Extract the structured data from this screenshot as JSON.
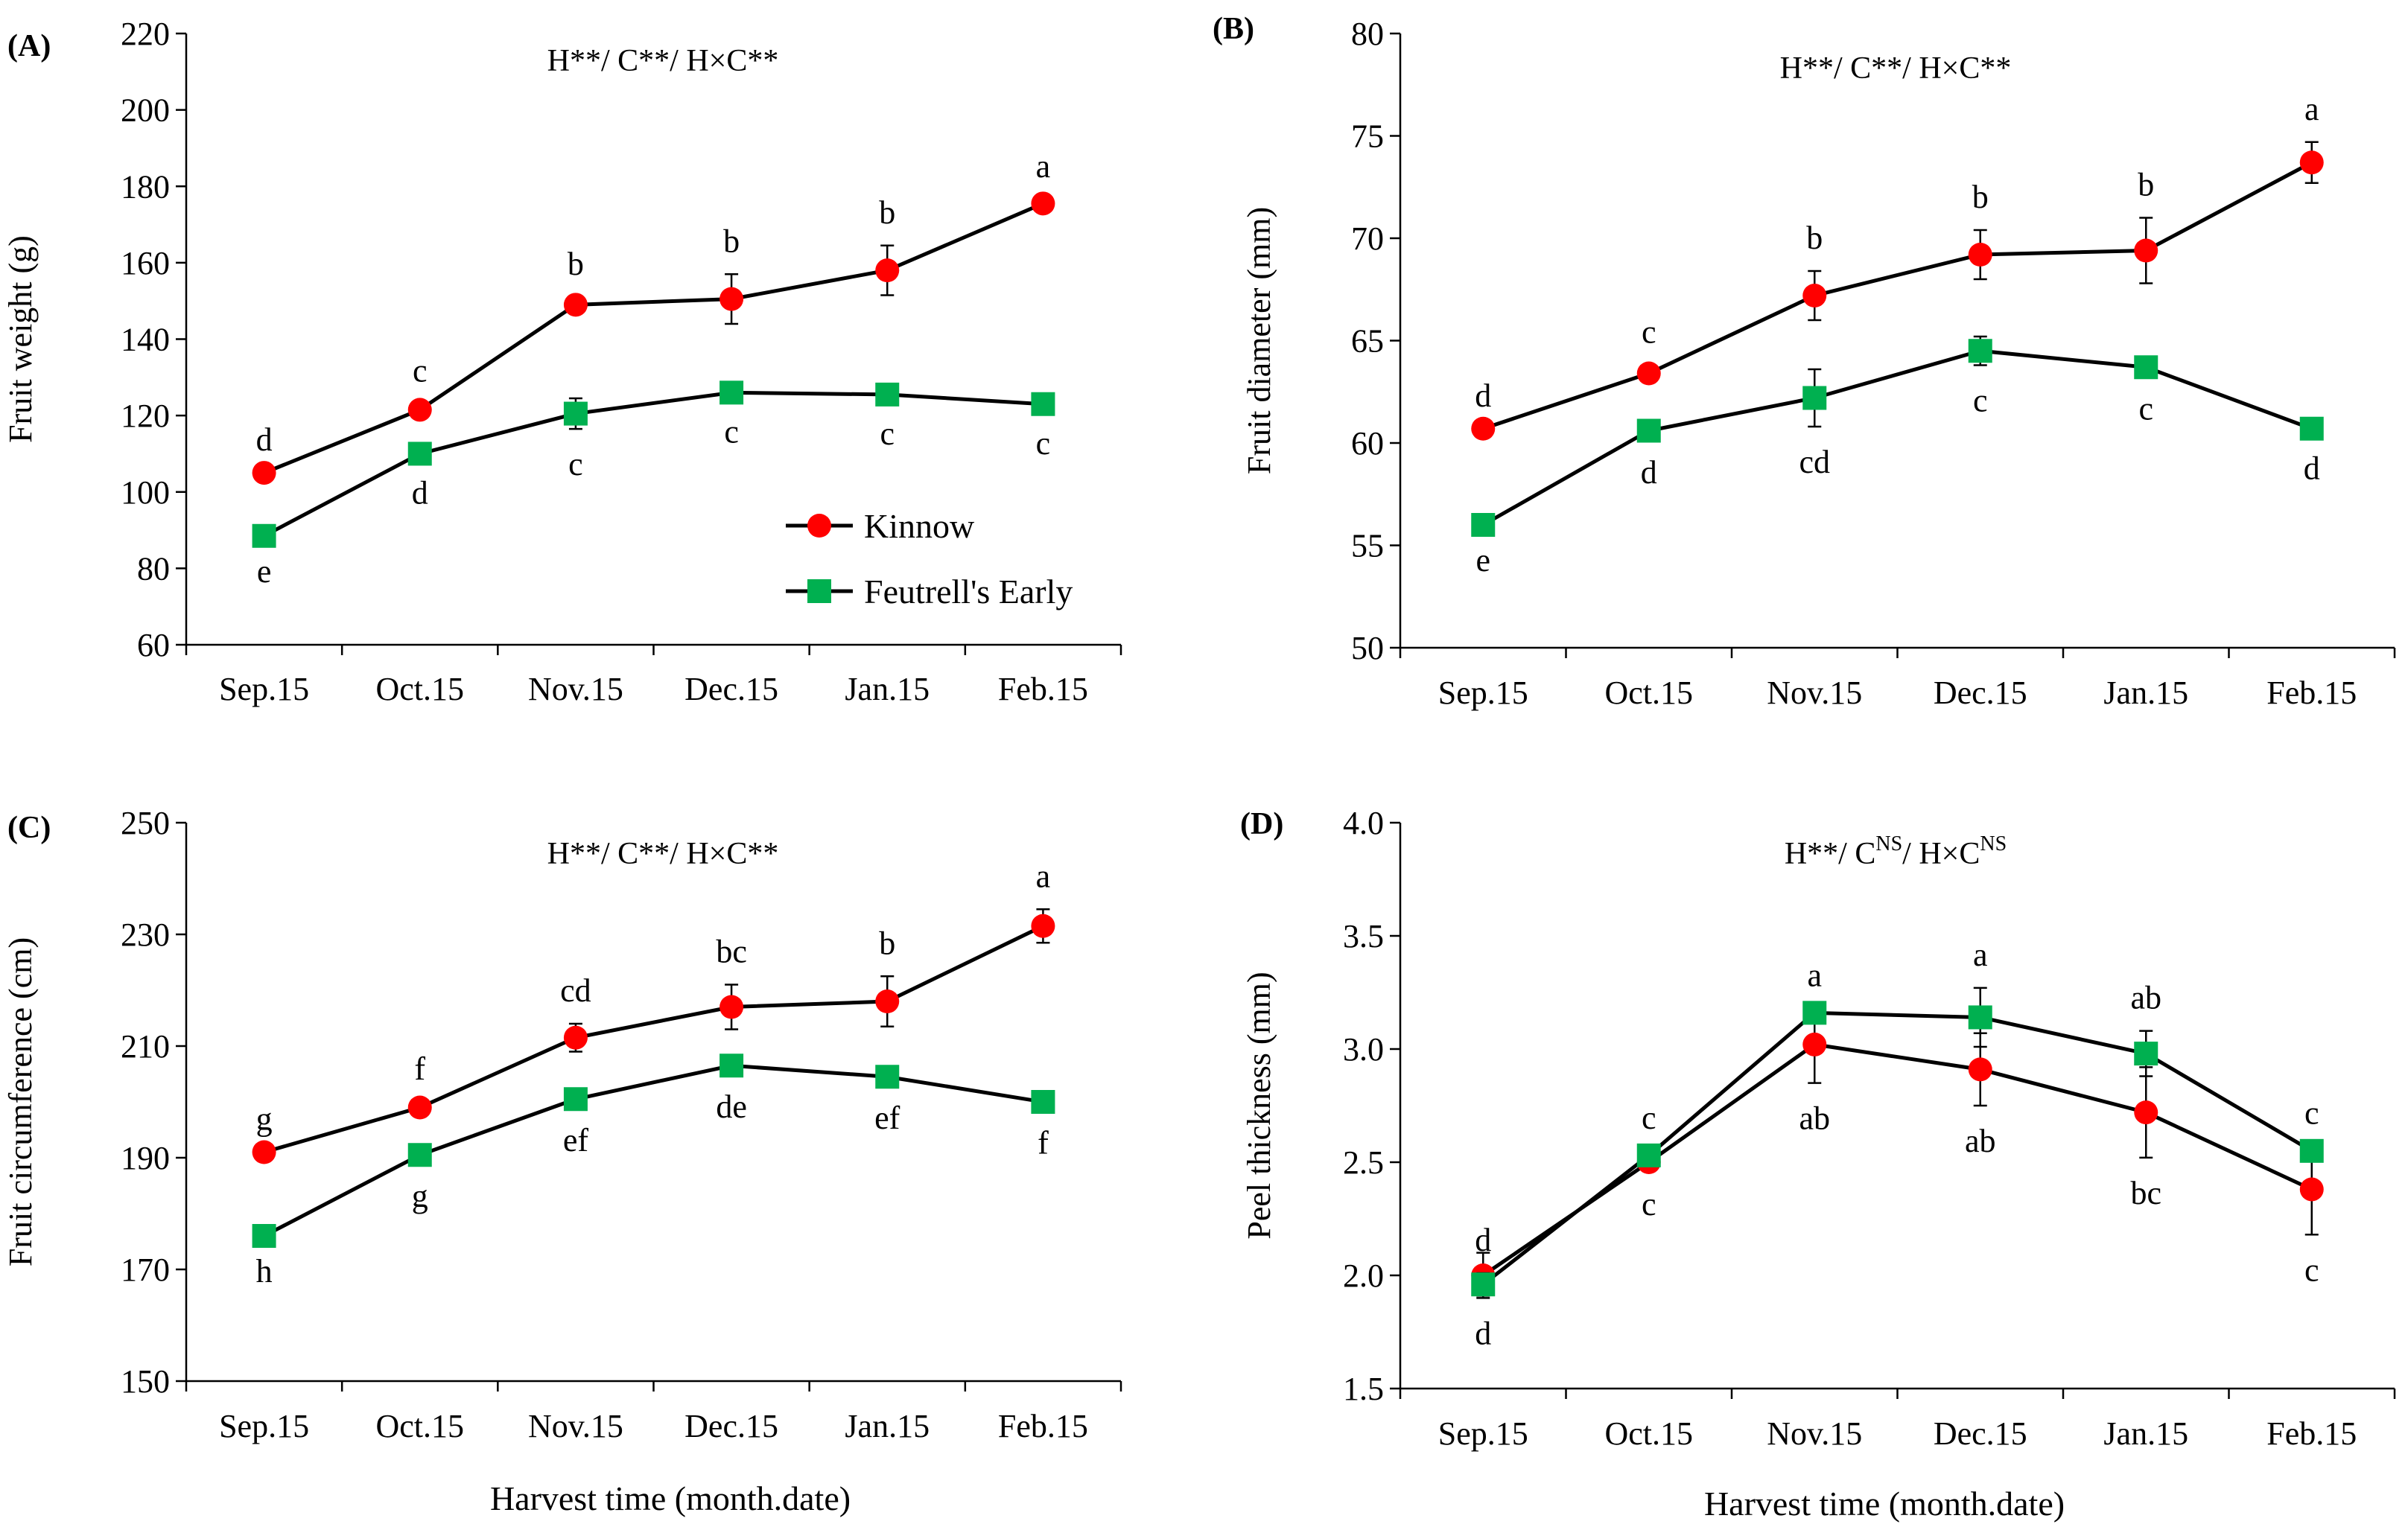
{
  "figure": {
    "x_title": "Harvest time (month.date)",
    "legend": [
      {
        "name": "Kinnow",
        "marker": "circle",
        "color": "#ff0000"
      },
      {
        "name": "Feutrell's Early",
        "marker": "square",
        "color": "#00b050"
      }
    ]
  },
  "chart_data": [
    {
      "type": "line",
      "label": "(A)",
      "stats": "H**/ C**/ H×C**",
      "ylabel": "Fruit weight  (g)",
      "ylim": [
        60,
        220
      ],
      "yticks": [
        "60",
        "80",
        "100",
        "120",
        "140",
        "160",
        "180",
        "200",
        "220"
      ],
      "categories": [
        "Sep.15",
        "Oct.15",
        "Nov.15",
        "Dec.15",
        "Jan.15",
        "Feb.15"
      ],
      "series": [
        {
          "name": "Kinnow",
          "values": [
            105,
            121.5,
            149,
            150.5,
            158,
            175.5
          ],
          "errors": [
            0,
            1.5,
            2,
            6.5,
            6.5,
            1
          ],
          "letters": [
            "d",
            "c",
            "b",
            "b",
            "b",
            "a"
          ],
          "letter_pos": "above"
        },
        {
          "name": "Feutrell's Early",
          "values": [
            88.5,
            110,
            120.5,
            126,
            125.5,
            123
          ],
          "errors": [
            0,
            1,
            4,
            1,
            1,
            1
          ],
          "letters": [
            "e",
            "d",
            "c",
            "c",
            "c",
            "c"
          ],
          "letter_pos": "below"
        }
      ]
    },
    {
      "type": "line",
      "label": "(B)",
      "stats": "H**/ C**/ H×C**",
      "ylabel": "Fruit diameter  (mm)",
      "ylim": [
        50,
        80
      ],
      "yticks": [
        "50",
        "55",
        "60",
        "65",
        "70",
        "75",
        "80"
      ],
      "categories": [
        "Sep.15",
        "Oct.15",
        "Nov.15",
        "Dec.15",
        "Jan.15",
        "Feb.15"
      ],
      "series": [
        {
          "name": "Kinnow",
          "values": [
            60.7,
            63.4,
            67.2,
            69.2,
            69.4,
            73.7
          ],
          "errors": [
            0,
            0.4,
            1.2,
            1.2,
            1.6,
            1
          ],
          "letters": [
            "d",
            "c",
            "b",
            "b",
            "b",
            "a"
          ],
          "letter_pos": "above"
        },
        {
          "name": "Feutrell's Early",
          "values": [
            56,
            60.6,
            62.2,
            64.5,
            63.7,
            60.7
          ],
          "errors": [
            0,
            0.3,
            1.4,
            0.7,
            0.3,
            0.2
          ],
          "letters": [
            "e",
            "d",
            "cd",
            "c",
            "c",
            "d"
          ],
          "letter_pos": "below"
        }
      ]
    },
    {
      "type": "line",
      "label": "(C)",
      "stats": "H**/ C**/ H×C**",
      "ylabel": "Fruit circumference  (cm)",
      "ylim": [
        150,
        250
      ],
      "yticks": [
        "150",
        "170",
        "190",
        "210",
        "230",
        "250"
      ],
      "categories": [
        "Sep.15",
        "Oct.15",
        "Nov.15",
        "Dec.15",
        "Jan.15",
        "Feb.15"
      ],
      "series": [
        {
          "name": "Kinnow",
          "values": [
            191,
            199,
            211.5,
            217,
            218,
            231.5
          ],
          "errors": [
            0,
            1,
            2.5,
            4,
            4.5,
            3
          ],
          "letters": [
            "g",
            "f",
            "cd",
            "bc",
            "b",
            "a"
          ],
          "letter_pos": "above"
        },
        {
          "name": "Feutrell's Early",
          "values": [
            176,
            190.5,
            200.5,
            206.5,
            204.5,
            200
          ],
          "errors": [
            0,
            1,
            1,
            1,
            1,
            1
          ],
          "letters": [
            "h",
            "g",
            "ef",
            "de",
            "ef",
            "f"
          ],
          "letter_pos": "below"
        }
      ]
    },
    {
      "type": "line",
      "label": "(D)",
      "stats_main": "H**/ C",
      "stats_sup1": "NS",
      "stats_mid": "/ H×C",
      "stats_sup2": "NS",
      "ylabel": "Peel thickness  (mm)",
      "ylim": [
        1.5,
        4.0
      ],
      "yticks": [
        "1.5",
        "2.0",
        "2.5",
        "3.0",
        "3.5",
        "4.0"
      ],
      "categories": [
        "Sep.15",
        "Oct.15",
        "Nov.15",
        "Dec.15",
        "Jan.15",
        "Feb.15"
      ],
      "series": [
        {
          "name": "Kinnow",
          "values": [
            2.0,
            2.5,
            3.02,
            2.91,
            2.72,
            2.38
          ],
          "errors": [
            0.1,
            0.03,
            0.17,
            0.16,
            0.2,
            0.2
          ],
          "letters": [
            "d",
            "c",
            "ab",
            "ab",
            "bc",
            "c"
          ],
          "letter_pos": "below"
        },
        {
          "name": "Feutrell's Early",
          "values": [
            1.96,
            2.53,
            3.16,
            3.14,
            2.98,
            2.55
          ],
          "errors": [
            0.05,
            0.02,
            0.02,
            0.13,
            0.1,
            0.02
          ],
          "letters": [
            "d",
            "c",
            "a",
            "a",
            "ab",
            "c"
          ],
          "letter_pos": "above"
        }
      ]
    }
  ]
}
